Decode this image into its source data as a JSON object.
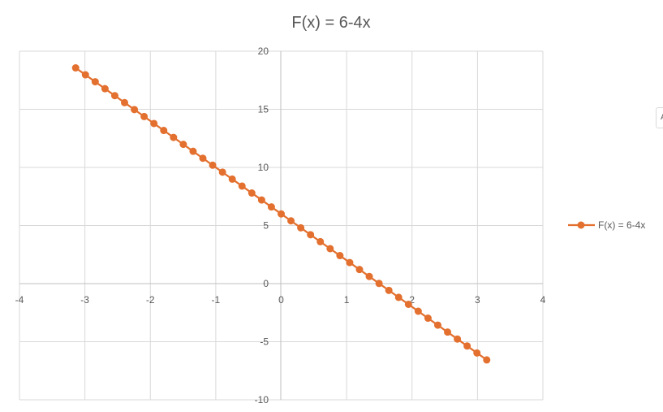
{
  "chart_data": {
    "type": "scatter",
    "title": "F(x) = 6-4x",
    "xlabel": "",
    "ylabel": "",
    "xlim": [
      -4,
      4
    ],
    "ylim": [
      -10,
      20
    ],
    "x_ticks": [
      -4,
      -3,
      -2,
      -1,
      0,
      1,
      2,
      3,
      4
    ],
    "y_ticks": [
      -10,
      -5,
      0,
      5,
      10,
      15,
      20
    ],
    "grid": true,
    "legend_position": "right",
    "series": [
      {
        "name": "F(x) = 6-4x",
        "color": "#E3702F",
        "marker": "circle",
        "line": "straight",
        "x": [
          -3.14159,
          -2.99199,
          -2.84239,
          -2.69279,
          -2.54319,
          -2.39359,
          -2.24399,
          -2.0944,
          -1.9448,
          -1.7952,
          -1.6456,
          -1.496,
          -1.3464,
          -1.1968,
          -1.0472,
          -0.8976,
          -0.748,
          -0.5984,
          -0.4488,
          -0.2992,
          -0.1496,
          0.0,
          0.1496,
          0.2992,
          0.4488,
          0.5984,
          0.748,
          0.8976,
          1.0472,
          1.1968,
          1.3464,
          1.496,
          1.6456,
          1.7952,
          1.9448,
          2.0944,
          2.24399,
          2.39359,
          2.54319,
          2.69279,
          2.84239,
          2.99199,
          3.14159
        ],
        "y": [
          18.566,
          17.968,
          17.37,
          16.771,
          16.173,
          15.574,
          14.976,
          14.378,
          13.779,
          13.181,
          12.582,
          11.984,
          11.386,
          10.787,
          10.189,
          9.59,
          8.992,
          8.394,
          7.795,
          7.197,
          6.598,
          6.0,
          5.402,
          4.803,
          4.205,
          3.606,
          3.008,
          2.41,
          1.811,
          1.213,
          0.614,
          0.016,
          -0.582,
          -1.181,
          -1.779,
          -2.378,
          -2.976,
          -3.574,
          -4.173,
          -4.771,
          -5.37,
          -5.968,
          -6.566
        ]
      }
    ]
  },
  "side_tab": {
    "glyph": "A"
  }
}
